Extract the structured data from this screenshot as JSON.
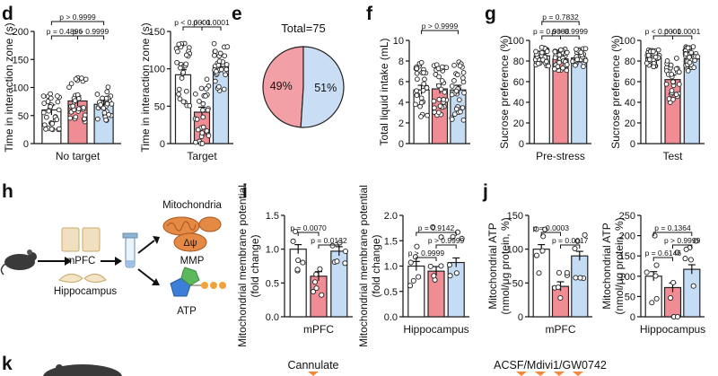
{
  "colors": {
    "control": "#ffffff",
    "red": "#f08c93",
    "blue": "#c5dcf5",
    "outline": "#222222",
    "pie_red": "#f2a0a6",
    "pie_blue": "#c9ddf4",
    "arrow": "#f4893a"
  },
  "panel_labels": {
    "d": "d",
    "e": "e",
    "f": "f",
    "g": "g",
    "h": "h",
    "i": "i",
    "j": "j",
    "k": "k"
  },
  "diagram_h": {
    "mpfc": "mPFC",
    "hippocampus": "Hippocampus",
    "mitochondria": "Mitochondria",
    "delta_psi": "Δψ",
    "mmp": "MMP",
    "atp": "ATP"
  },
  "panel_k": {
    "cannulate": "Cannulate",
    "drugs": "ACSF/Mdivi1/GW0742"
  },
  "chart_data": [
    {
      "id": "d1",
      "type": "bar",
      "ylabel": "Time in interaction zone (s)",
      "xlabel": "No target",
      "ylim": [
        0,
        200
      ],
      "yticks": [
        0,
        50,
        100,
        150,
        200
      ],
      "values": [
        60,
        76,
        70
      ],
      "comparisons": [
        {
          "text": "p = 0.4896"
        },
        {
          "text": "p > 0.9999"
        },
        {
          "text": "p > 0.9999"
        }
      ]
    },
    {
      "id": "d2",
      "type": "bar",
      "ylabel": "Time in interaction zone (s)",
      "xlabel": "Target",
      "ylim": [
        0,
        150
      ],
      "yticks": [
        0,
        50,
        100,
        150
      ],
      "values": [
        92,
        42,
        103
      ],
      "comparisons": [
        {
          "text": "p < 0.0001"
        },
        {
          "text": "p < 0.0001"
        }
      ]
    },
    {
      "id": "e",
      "type": "pie",
      "title": "Total=75",
      "slices": [
        {
          "value": 49,
          "label": "49%"
        },
        {
          "value": 51,
          "label": "51%"
        }
      ]
    },
    {
      "id": "f",
      "type": "bar",
      "ylabel": "Total liquid intake (mL)",
      "xlabel": "",
      "ylim": [
        0,
        10
      ],
      "yticks": [
        0,
        2,
        4,
        6,
        8,
        10
      ],
      "values": [
        5.2,
        5.3,
        5.2
      ],
      "comparisons": [
        {
          "text": "p > 0.9999"
        }
      ]
    },
    {
      "id": "g1",
      "type": "bar",
      "ylabel": "Sucrose preference (%)",
      "xlabel": "Pre-stress",
      "ylim": [
        0,
        100
      ],
      "yticks": [
        0,
        20,
        40,
        60,
        80,
        100
      ],
      "values": [
        85,
        82,
        83
      ],
      "comparisons": [
        {
          "text": "p = 0.9888"
        },
        {
          "text": "p > 0.9999"
        },
        {
          "text": "p = 0.7832"
        }
      ]
    },
    {
      "id": "g2",
      "type": "bar",
      "ylabel": "Sucrose preference (%)",
      "xlabel": "Test",
      "ylim": [
        0,
        100
      ],
      "yticks": [
        0,
        20,
        40,
        60,
        80,
        100
      ],
      "values": [
        83,
        62,
        82
      ],
      "comparisons": [
        {
          "text": "p < 0.0001"
        },
        {
          "text": "p < 0.0001"
        }
      ]
    },
    {
      "id": "i1",
      "type": "bar",
      "ylabel": "Mitochondrial membrane potential (fold change)",
      "xlabel": "mPFC",
      "ylim": [
        0,
        1.5
      ],
      "yticks": [
        0.0,
        0.5,
        1.0,
        1.5
      ],
      "values": [
        1.0,
        0.6,
        0.97
      ],
      "comparisons": [
        {
          "text": "p = 0.0070"
        },
        {
          "text": "p = 0.0132"
        }
      ]
    },
    {
      "id": "i2",
      "type": "bar",
      "ylabel": "Mitochondrial membrane potential (fold change)",
      "xlabel": "Hippocampus",
      "ylim": [
        0,
        2.0
      ],
      "yticks": [
        0.0,
        0.5,
        1.0,
        1.5,
        2.0
      ],
      "values": [
        1.0,
        0.9,
        1.07
      ],
      "comparisons": [
        {
          "text": "p > 0.9999"
        },
        {
          "text": "p > 0.9999"
        },
        {
          "text": "p = 0.9142"
        }
      ]
    },
    {
      "id": "j1",
      "type": "bar",
      "ylabel": "Mitochondrial ATP (nmol/μg protein, %)",
      "xlabel": "mPFC",
      "ylim": [
        0,
        150
      ],
      "yticks": [
        0,
        50,
        100,
        150
      ],
      "values": [
        100,
        45,
        90
      ],
      "comparisons": [
        {
          "text": "p = 0.0003"
        },
        {
          "text": "p = 0.0017"
        }
      ]
    },
    {
      "id": "j2",
      "type": "bar",
      "ylabel": "Mitochondrial ATP (nmol/μg protein, %)",
      "xlabel": "Hippocampus",
      "ylim": [
        0,
        250
      ],
      "yticks": [
        0,
        50,
        100,
        150,
        200,
        250
      ],
      "values": [
        100,
        72,
        117
      ],
      "comparisons": [
        {
          "text": "p = 0.6146"
        },
        {
          "text": "p > 0.9999"
        },
        {
          "text": "p = 0.1364"
        }
      ]
    }
  ]
}
